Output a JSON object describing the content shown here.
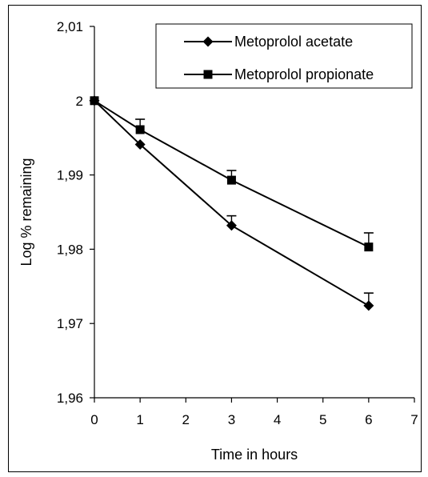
{
  "chart_data": {
    "type": "line",
    "title": "",
    "xlabel": "Time in hours",
    "ylabel": "Log % remaining",
    "xlim": [
      0,
      7
    ],
    "ylim": [
      1.96,
      2.01
    ],
    "x_ticks": [
      "0",
      "1",
      "2",
      "3",
      "4",
      "5",
      "6",
      "7"
    ],
    "y_ticks": [
      "1,96",
      "1,97",
      "1,98",
      "1,99",
      "2",
      "2,01"
    ],
    "grid": false,
    "legend_position": "top-right",
    "series": [
      {
        "name": "Metoprolol acetate",
        "marker": "diamond",
        "color": "#000000",
        "x": [
          0,
          1,
          3,
          6
        ],
        "y": [
          2.0,
          1.9941,
          1.9832,
          1.9724
        ],
        "error_upper": [
          null,
          null,
          1.9845,
          1.9741
        ]
      },
      {
        "name": "Metoprolol propionate",
        "marker": "square",
        "color": "#000000",
        "x": [
          0,
          1,
          3,
          6
        ],
        "y": [
          2.0,
          1.9961,
          1.9893,
          1.9803
        ],
        "error_upper": [
          null,
          1.9975,
          1.9906,
          1.9822
        ]
      }
    ]
  }
}
